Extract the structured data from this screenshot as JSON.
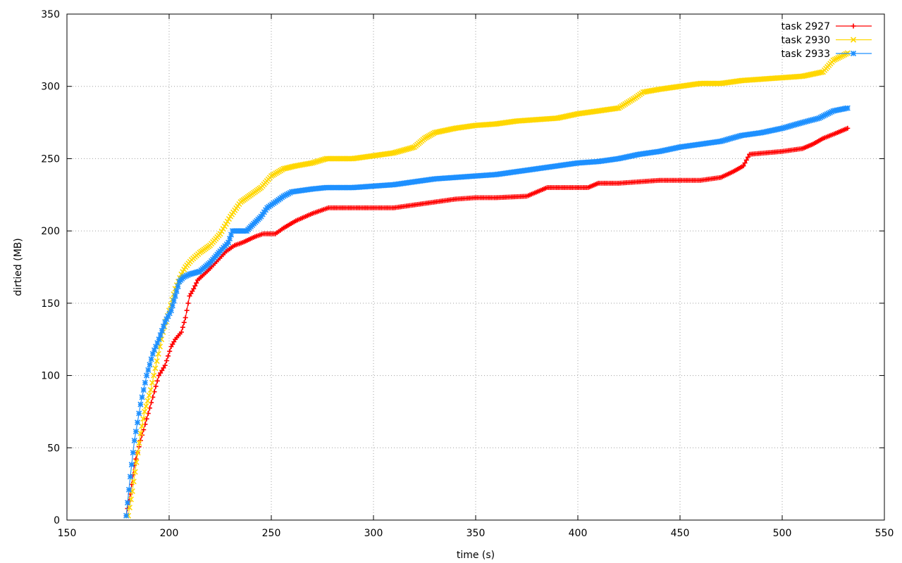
{
  "chart_data": {
    "type": "line",
    "xlabel": "time (s)",
    "ylabel": "dirtied (MB)",
    "xlim": [
      150,
      550
    ],
    "ylim": [
      0,
      350
    ],
    "xticks": [
      150,
      200,
      250,
      300,
      350,
      400,
      450,
      500,
      550
    ],
    "yticks": [
      0,
      50,
      100,
      150,
      200,
      250,
      300,
      350
    ],
    "grid": true,
    "legend_position": "top-right",
    "series": [
      {
        "name": "task 2927",
        "color": "#ff0000",
        "marker": "plus",
        "x": [
          179,
          181,
          183,
          186,
          189,
          192,
          195,
          198,
          201,
          203,
          206,
          208,
          210,
          212,
          214,
          217,
          220,
          224,
          228,
          232,
          236,
          242,
          246,
          252,
          256,
          262,
          270,
          278,
          300,
          310,
          320,
          330,
          340,
          350,
          360,
          375,
          385,
          395,
          405,
          410,
          420,
          430,
          440,
          460,
          470,
          476,
          481,
          484,
          500,
          510,
          515,
          520,
          527,
          532
        ],
        "y": [
          3,
          18,
          38,
          55,
          70,
          85,
          100,
          107,
          120,
          125,
          130,
          140,
          155,
          160,
          166,
          170,
          174,
          180,
          186,
          190,
          192,
          196,
          198,
          198,
          202,
          207,
          212,
          216,
          216,
          216,
          218,
          220,
          222,
          223,
          223,
          224,
          230,
          230,
          230,
          233,
          233,
          234,
          235,
          235,
          237,
          241,
          245,
          253,
          255,
          257,
          260,
          264,
          268,
          271
        ]
      },
      {
        "name": "task 2930",
        "color": "#ffd700",
        "marker": "cross",
        "x": [
          180,
          182,
          184,
          186,
          188,
          191,
          194,
          197,
          200,
          203,
          206,
          208,
          211,
          215,
          220,
          225,
          230,
          235,
          240,
          245,
          250,
          256,
          262,
          270,
          277,
          290,
          300,
          310,
          320,
          325,
          330,
          340,
          350,
          360,
          370,
          380,
          390,
          400,
          410,
          420,
          428,
          432,
          440,
          450,
          460,
          470,
          480,
          490,
          500,
          510,
          520,
          525,
          532
        ],
        "y": [
          3,
          20,
          40,
          60,
          75,
          90,
          110,
          130,
          145,
          160,
          170,
          175,
          180,
          185,
          190,
          198,
          210,
          220,
          225,
          230,
          238,
          243,
          245,
          247,
          250,
          250,
          252,
          254,
          258,
          264,
          268,
          271,
          273,
          274,
          276,
          277,
          278,
          281,
          283,
          285,
          292,
          296,
          298,
          300,
          302,
          302,
          304,
          305,
          306,
          307,
          310,
          318,
          323
        ]
      },
      {
        "name": "task 2933",
        "color": "#1e90ff",
        "marker": "asterisk",
        "x": [
          179,
          181,
          183,
          186,
          189,
          192,
          195,
          198,
          201,
          203,
          205,
          207,
          210,
          215,
          220,
          225,
          229,
          231,
          238,
          240,
          245,
          248,
          252,
          256,
          260,
          270,
          277,
          290,
          300,
          310,
          320,
          330,
          340,
          350,
          360,
          370,
          380,
          390,
          400,
          410,
          420,
          430,
          440,
          450,
          460,
          470,
          480,
          490,
          500,
          510,
          518,
          525,
          532
        ],
        "y": [
          3,
          30,
          55,
          80,
          100,
          115,
          125,
          137,
          145,
          155,
          165,
          168,
          170,
          172,
          178,
          186,
          192,
          200,
          200,
          203,
          210,
          216,
          220,
          224,
          227,
          229,
          230,
          230,
          231,
          232,
          234,
          236,
          237,
          238,
          239,
          241,
          243,
          245,
          247,
          248,
          250,
          253,
          255,
          258,
          260,
          262,
          266,
          268,
          271,
          275,
          278,
          283,
          285
        ]
      }
    ]
  }
}
